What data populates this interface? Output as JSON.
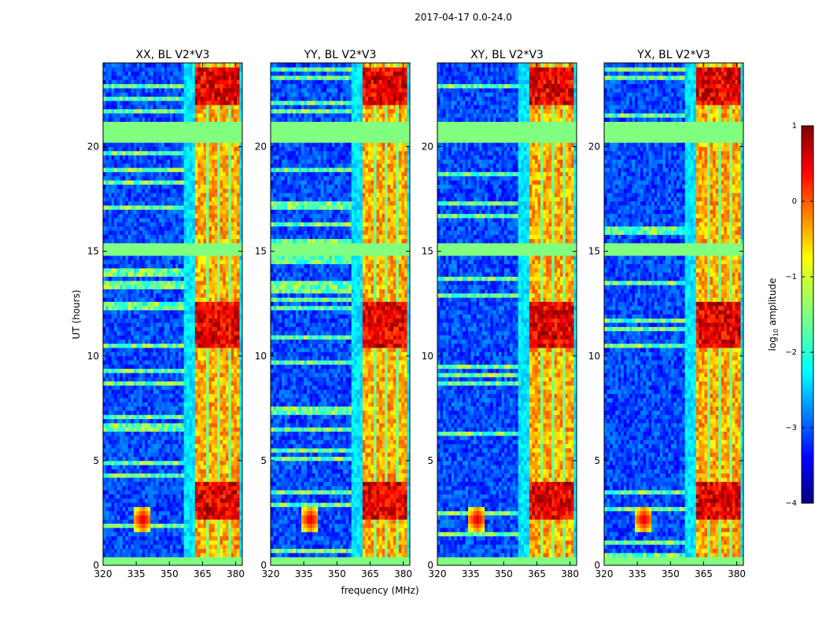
{
  "figure": {
    "suptitle": "2017-04-17 0.0-24.0"
  },
  "chart_data": {
    "type": "heatmap",
    "xlabel": "frequency (MHz)",
    "ylabel": "UT (hours)",
    "xlim": [
      320,
      383
    ],
    "ylim": [
      0,
      24
    ],
    "xticks": [
      320,
      335,
      350,
      365,
      380
    ],
    "yticks": [
      0,
      5,
      10,
      15,
      20
    ],
    "panels": [
      {
        "title": "XX, BL V2*V3"
      },
      {
        "title": "YY, BL V2*V3"
      },
      {
        "title": "XY, BL V2*V3"
      },
      {
        "title": "YX, BL V2*V3"
      }
    ],
    "colorbar": {
      "label": "log10 amplitude",
      "label_main": "log",
      "label_sub": "10",
      "label_rest": " amplitude",
      "range": [
        -4,
        1
      ],
      "ticks": [
        1,
        0,
        -1,
        -2,
        -3,
        -4
      ],
      "tick_labels": [
        "1",
        "0",
        "−1",
        "−2",
        "−3",
        "−4"
      ],
      "colormap": "jet"
    },
    "features": {
      "rfi_band_mhz": [
        361,
        382
      ],
      "flagged_rows_ut": [
        [
          20.2,
          21.1
        ],
        [
          14.9,
          15.4
        ],
        [
          0.0,
          0.4
        ]
      ],
      "strong_rows_ut": [
        [
          22.0,
          23.8
        ],
        [
          10.4,
          12.6
        ],
        [
          2.2,
          4.0
        ]
      ],
      "hot_spot_mhz": 338,
      "hot_spot_ut": 2.2
    }
  }
}
